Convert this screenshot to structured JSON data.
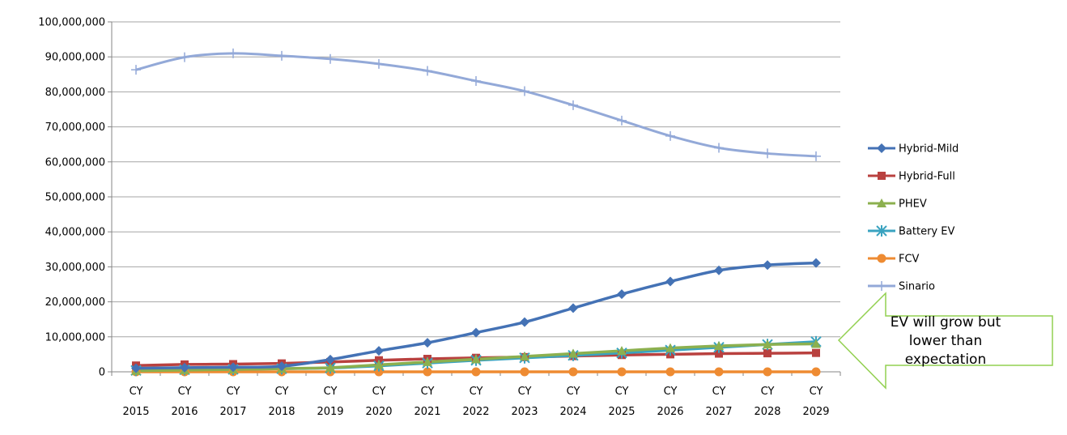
{
  "chart_data": {
    "type": "line",
    "title": "",
    "xlabel": "",
    "ylabel": "",
    "ylim": [
      0,
      100000000
    ],
    "y_ticks": [
      "0",
      "10,000,000",
      "20,000,000",
      "30,000,000",
      "40,000,000",
      "50,000,000",
      "60,000,000",
      "70,000,000",
      "80,000,000",
      "90,000,000",
      "100,000,000"
    ],
    "categories": [
      [
        "CY",
        "2015"
      ],
      [
        "CY",
        "2016"
      ],
      [
        "CY",
        "2017"
      ],
      [
        "CY",
        "2018"
      ],
      [
        "CY",
        "2019"
      ],
      [
        "CY",
        "2020"
      ],
      [
        "CY",
        "2021"
      ],
      [
        "CY",
        "2022"
      ],
      [
        "CY",
        "2023"
      ],
      [
        "CY",
        "2024"
      ],
      [
        "CY",
        "2025"
      ],
      [
        "CY",
        "2026"
      ],
      [
        "CY",
        "2027"
      ],
      [
        "CY",
        "2028"
      ],
      [
        "CY",
        "2029"
      ]
    ],
    "grid": "horizontal",
    "legend_position": "right",
    "series": [
      {
        "name": "Hybrid-Mild",
        "color": "#4472b5",
        "marker": "diamond",
        "values": [
          1000000,
          1200000,
          1300000,
          1600000,
          3500000,
          6000000,
          8300000,
          11200000,
          14200000,
          18200000,
          22200000,
          25800000,
          29000000,
          30500000,
          31100000
        ]
      },
      {
        "name": "Hybrid-Full",
        "color": "#b9413f",
        "marker": "square",
        "values": [
          1800000,
          2100000,
          2200000,
          2400000,
          2800000,
          3300000,
          3700000,
          4000000,
          4200000,
          4500000,
          4800000,
          5000000,
          5200000,
          5300000,
          5400000
        ]
      },
      {
        "name": "PHEV",
        "color": "#8cb04f",
        "marker": "triangle",
        "values": [
          300000,
          500000,
          700000,
          900000,
          1200000,
          2000000,
          2800000,
          3600000,
          4400000,
          5200000,
          6000000,
          6800000,
          7400000,
          7800000,
          8000000
        ]
      },
      {
        "name": "Battery EV",
        "color": "#3aa3c0",
        "marker": "star",
        "values": [
          400000,
          600000,
          700000,
          900000,
          1100000,
          1700000,
          2500000,
          3300000,
          4000000,
          4700000,
          5400000,
          6200000,
          7000000,
          7800000,
          8600000
        ]
      },
      {
        "name": "FCV",
        "color": "#ee8b32",
        "marker": "circle",
        "values": [
          0,
          0,
          0,
          0,
          0,
          0,
          0,
          0,
          0,
          0,
          0,
          0,
          0,
          0,
          0
        ]
      },
      {
        "name": "Sinario",
        "color": "#93a9d8",
        "marker": "plus",
        "values": [
          86300000,
          89900000,
          91000000,
          90300000,
          89400000,
          88000000,
          86000000,
          83100000,
          80200000,
          76200000,
          71800000,
          67400000,
          64000000,
          62400000,
          61600000
        ]
      }
    ],
    "annotation": {
      "lines": [
        "EV will grow but",
        "lower than",
        "expectation"
      ],
      "shape": "left-arrow",
      "stroke_color": "#92d050"
    }
  }
}
